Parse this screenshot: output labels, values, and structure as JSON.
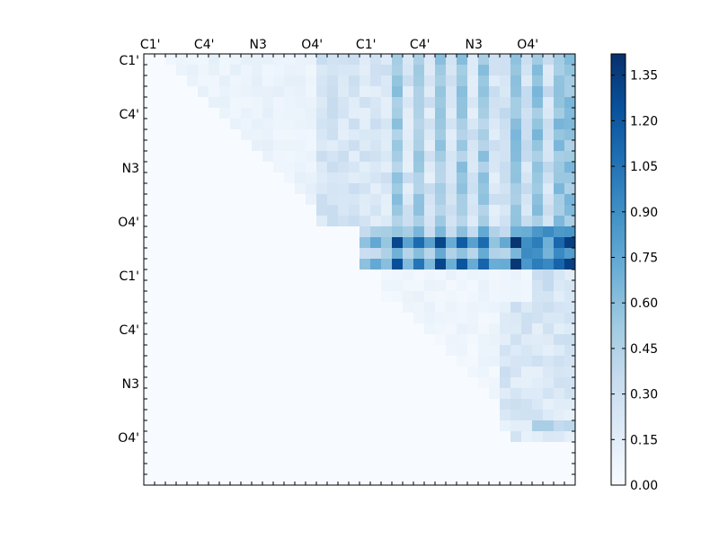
{
  "chart_data": {
    "type": "heatmap",
    "title": "",
    "xlabel": "",
    "ylabel": "",
    "grid": false,
    "rows": 40,
    "cols": 40,
    "x_tick_labels": [
      "C1'",
      "C4'",
      "N3",
      "O4'",
      "C1'",
      "C4'",
      "N3",
      "O4'"
    ],
    "y_tick_labels": [
      "C1'",
      "C4'",
      "N3",
      "O4'",
      "C1'",
      "C4'",
      "N3",
      "O4'"
    ],
    "tick_label_indices": [
      0,
      5,
      10,
      15,
      20,
      25,
      30,
      35
    ],
    "colorbar": {
      "min": 0.0,
      "max": 1.42,
      "ticks": [
        "0.00",
        "0.15",
        "0.30",
        "0.45",
        "0.60",
        "0.75",
        "0.90",
        "1.05",
        "1.20",
        "1.35"
      ],
      "colormap": "Blues"
    },
    "regions": [
      {
        "rows": [
          0,
          19
        ],
        "cols": [
          19,
          39
        ],
        "base": 0.28,
        "note": "first strand vs second strand"
      },
      {
        "rows": [
          16,
          19
        ],
        "cols": [
          20,
          39
        ],
        "base": 0.7,
        "peak": 1.4
      },
      {
        "rows": [
          20,
          35
        ],
        "cols": [
          33,
          39
        ],
        "base": 0.2
      },
      {
        "rows": [
          0,
          15
        ],
        "cols": [
          1,
          18
        ],
        "base": 0.08
      }
    ],
    "strong_columns": [
      23,
      25,
      27,
      29,
      31,
      34,
      36,
      38,
      39
    ],
    "peak_cells": [
      {
        "row": 17,
        "col": 34,
        "value": 1.4
      },
      {
        "row": 19,
        "col": 34,
        "value": 1.38
      },
      {
        "row": 17,
        "col": 27,
        "value": 1.3
      },
      {
        "row": 19,
        "col": 27,
        "value": 1.3
      },
      {
        "row": 17,
        "col": 25,
        "value": 1.1
      },
      {
        "row": 19,
        "col": 25,
        "value": 1.05
      },
      {
        "row": 17,
        "col": 36,
        "value": 1.0
      },
      {
        "row": 19,
        "col": 36,
        "value": 1.0
      }
    ]
  }
}
